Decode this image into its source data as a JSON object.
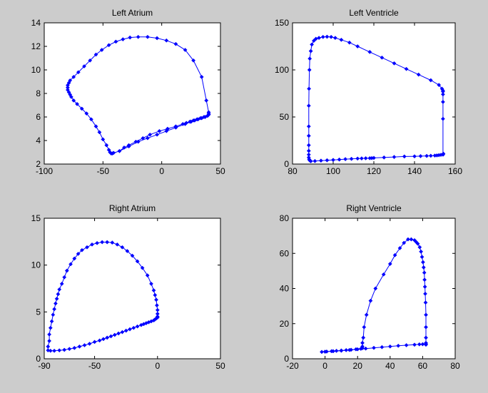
{
  "chart_data": [
    {
      "type": "line",
      "title": "Left Atrium",
      "xlabel": "",
      "ylabel": "",
      "xlim": [
        -100,
        50
      ],
      "ylim": [
        2,
        14
      ],
      "xticks": [
        "-100",
        "-50",
        "0",
        "50"
      ],
      "yticks": [
        "2",
        "4",
        "6",
        "8",
        "10",
        "12",
        "14"
      ],
      "grid": false,
      "marker": "diamond",
      "color": "#0000ff",
      "series": [
        {
          "x": [
            40,
            39,
            36,
            33,
            30,
            27,
            24,
            21,
            18,
            12,
            5,
            -2,
            -10,
            -16,
            -22,
            -28,
            -32,
            -36,
            -41,
            -43,
            -44,
            -45,
            -47,
            -50,
            -53,
            -56,
            -60,
            -64,
            -68,
            -72,
            -75,
            -77,
            -78,
            -79,
            -80,
            -80,
            -80,
            -79,
            -78,
            -75,
            -71,
            -66,
            -61,
            -56,
            -51,
            -45,
            -39,
            -33,
            -27,
            -20,
            -12,
            -4,
            4,
            12,
            20,
            27,
            34,
            38,
            40,
            40,
            40,
            39,
            37,
            34,
            31,
            28,
            25,
            20,
            12,
            4,
            -4,
            -12,
            -20,
            -28,
            -36,
            -42
          ],
          "y": [
            6.2,
            6.1,
            6.0,
            5.9,
            5.8,
            5.7,
            5.6,
            5.5,
            5.4,
            5.2,
            5.0,
            4.8,
            4.5,
            4.2,
            3.9,
            3.6,
            3.4,
            3.1,
            2.95,
            2.9,
            3.0,
            3.2,
            3.6,
            4.1,
            4.7,
            5.2,
            5.8,
            6.3,
            6.7,
            7.1,
            7.4,
            7.7,
            7.9,
            8.1,
            8.3,
            8.5,
            8.7,
            8.9,
            9.1,
            9.4,
            9.8,
            10.3,
            10.8,
            11.3,
            11.7,
            12.1,
            12.4,
            12.6,
            12.75,
            12.8,
            12.8,
            12.7,
            12.5,
            12.2,
            11.7,
            10.8,
            9.4,
            7.4,
            6.4,
            6.3,
            6.2,
            6.1,
            6.0,
            5.9,
            5.8,
            5.7,
            5.6,
            5.4,
            5.1,
            4.8,
            4.5,
            4.2,
            3.9,
            3.5,
            3.1,
            2.9
          ]
        }
      ]
    },
    {
      "type": "line",
      "title": "Left Ventricle",
      "xlabel": "",
      "ylabel": "",
      "xlim": [
        80,
        160
      ],
      "ylim": [
        0,
        150
      ],
      "xticks": [
        "80",
        "100",
        "120",
        "140",
        "160"
      ],
      "yticks": [
        "0",
        "50",
        "100",
        "150"
      ],
      "grid": false,
      "marker": "diamond",
      "color": "#0000ff",
      "series": [
        {
          "x": [
            154,
            154,
            154,
            154,
            154,
            154,
            153.5,
            152,
            148,
            142,
            136,
            130,
            124,
            118,
            112,
            108,
            104,
            101,
            99,
            97,
            95,
            93,
            91.5,
            90.5,
            89.5,
            89,
            88.5,
            88.3,
            88.1,
            88,
            88,
            88,
            88,
            88,
            88,
            88,
            88.2,
            88.4,
            88.7,
            89,
            91,
            94,
            97,
            100,
            103,
            106,
            109,
            112,
            114,
            116,
            118,
            119,
            120,
            125,
            130,
            135,
            140,
            143,
            146,
            148,
            150,
            151,
            152,
            153,
            154,
            154.2
          ],
          "y": [
            10,
            48,
            66,
            74,
            77,
            78,
            80,
            84,
            89,
            95,
            101,
            107,
            113,
            119,
            125,
            129,
            132,
            134,
            135,
            135.2,
            135,
            134,
            133,
            131,
            127,
            120,
            112,
            100,
            80,
            62,
            40,
            30,
            20,
            14,
            10,
            7,
            5,
            4,
            3.5,
            3,
            3.2,
            3.6,
            4,
            4.4,
            4.8,
            5.2,
            5.5,
            5.8,
            6,
            6.1,
            6.2,
            6.3,
            6.5,
            7,
            7.5,
            8,
            8.2,
            8.4,
            8.6,
            8.8,
            9,
            9.2,
            9.5,
            9.8,
            10,
            11
          ]
        }
      ]
    },
    {
      "type": "line",
      "title": "Right Atrium",
      "xlabel": "",
      "ylabel": "",
      "xlim": [
        -90,
        50
      ],
      "ylim": [
        0,
        15
      ],
      "xticks": [
        "-90",
        "-50",
        "0",
        "50"
      ],
      "yticks": [
        "0",
        "5",
        "10",
        "15"
      ],
      "grid": false,
      "marker": "diamond",
      "color": "#0000ff",
      "series": [
        {
          "x": [
            0,
            0,
            -1,
            -2,
            -3,
            -5,
            -7,
            -9,
            -11,
            -13,
            -16,
            -19,
            -22,
            -25,
            -28,
            -31,
            -34,
            -37,
            -40,
            -43,
            -46,
            -50,
            -54,
            -58,
            -62,
            -66,
            -70,
            -74,
            -78,
            -82,
            -85,
            -87,
            -87,
            -86,
            -86,
            -85,
            -84,
            -83,
            -82,
            -81,
            -80,
            -79,
            -78,
            -76,
            -74,
            -72,
            -69,
            -66,
            -63,
            -60,
            -56,
            -52,
            -48,
            -44,
            -40,
            -36,
            -32,
            -28,
            -24,
            -20,
            -16,
            -12,
            -8,
            -5,
            -3,
            -2,
            -1,
            -0.5,
            0,
            0,
            0
          ],
          "y": [
            4.5,
            4.4,
            4.3,
            4.2,
            4.1,
            4.0,
            3.9,
            3.8,
            3.7,
            3.6,
            3.45,
            3.3,
            3.15,
            3.0,
            2.85,
            2.7,
            2.55,
            2.4,
            2.25,
            2.1,
            1.95,
            1.8,
            1.6,
            1.45,
            1.3,
            1.15,
            1.05,
            0.95,
            0.9,
            0.85,
            0.85,
            0.9,
            1.3,
            1.9,
            2.6,
            3.3,
            4.0,
            4.7,
            5.3,
            5.9,
            6.4,
            6.9,
            7.4,
            8.0,
            8.7,
            9.4,
            10.1,
            10.7,
            11.2,
            11.6,
            11.9,
            12.2,
            12.35,
            12.45,
            12.45,
            12.4,
            12.2,
            11.9,
            11.5,
            11.0,
            10.4,
            9.7,
            8.9,
            8.0,
            7.3,
            6.8,
            6.3,
            5.7,
            5.2,
            4.8,
            4.5
          ]
        }
      ]
    },
    {
      "type": "line",
      "title": "Right Ventricle",
      "xlabel": "",
      "ylabel": "",
      "xlim": [
        -20,
        80
      ],
      "ylim": [
        0,
        80
      ],
      "xticks": [
        "-20",
        "0",
        "20",
        "40",
        "60",
        "80"
      ],
      "yticks": [
        "0",
        "20",
        "40",
        "60",
        "80"
      ],
      "grid": false,
      "marker": "diamond",
      "color": "#0000ff",
      "series": [
        {
          "x": [
            62,
            62,
            62,
            62,
            62,
            61.8,
            61.6,
            61.4,
            61.2,
            61,
            60.6,
            60.2,
            59.6,
            59,
            58.2,
            57,
            56,
            55,
            53,
            51,
            48.5,
            46,
            43,
            40,
            36,
            31,
            28,
            25.5,
            24,
            23.5,
            23,
            23,
            23,
            22,
            19,
            16,
            13,
            10,
            7,
            4,
            1,
            -2,
            0,
            5,
            10,
            15,
            20,
            25,
            30,
            35,
            40,
            45,
            50,
            55,
            58,
            60,
            62
          ],
          "y": [
            8,
            9,
            12,
            18,
            25,
            32,
            37,
            41,
            45,
            49,
            52,
            55,
            58,
            61,
            63.5,
            65.5,
            66.5,
            67.5,
            68,
            68,
            66,
            63,
            59,
            54,
            48,
            40,
            33,
            25,
            18,
            12,
            9,
            7,
            6,
            5.7,
            5.4,
            5.1,
            4.9,
            4.7,
            4.5,
            4.3,
            4.1,
            3.9,
            4.0,
            4.3,
            4.6,
            5.0,
            5.4,
            5.8,
            6.2,
            6.6,
            7.0,
            7.4,
            7.7,
            8.0,
            8.2,
            8.3,
            8.4
          ]
        }
      ]
    }
  ]
}
